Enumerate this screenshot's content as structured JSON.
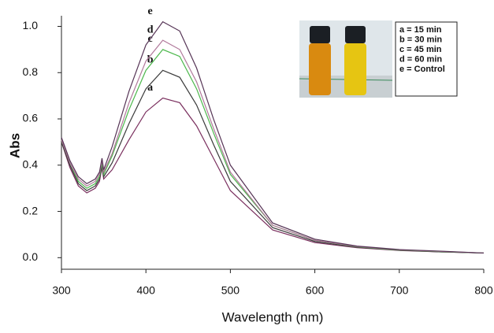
{
  "chart_data": {
    "type": "line",
    "xlabel": "Wavelength (nm)",
    "ylabel": "Abs",
    "x": [
      300,
      310,
      320,
      330,
      340,
      345,
      348,
      350,
      360,
      380,
      400,
      420,
      440,
      460,
      480,
      500,
      550,
      600,
      650,
      700,
      750,
      800
    ],
    "series": [
      {
        "name": "a = 15 min",
        "label": "a",
        "color": "#7a2f5e",
        "values": [
          0.5,
          0.39,
          0.31,
          0.28,
          0.3,
          0.33,
          0.39,
          0.34,
          0.38,
          0.51,
          0.63,
          0.69,
          0.67,
          0.57,
          0.43,
          0.29,
          0.12,
          0.065,
          0.043,
          0.031,
          0.025,
          0.02
        ]
      },
      {
        "name": "b = 30 min",
        "label": "b",
        "color": "#3a3a3a",
        "values": [
          0.5,
          0.4,
          0.32,
          0.29,
          0.31,
          0.34,
          0.4,
          0.35,
          0.41,
          0.58,
          0.73,
          0.81,
          0.78,
          0.66,
          0.49,
          0.33,
          0.13,
          0.07,
          0.045,
          0.032,
          0.025,
          0.02
        ]
      },
      {
        "name": "c = 45 min",
        "label": "c",
        "color": "#4cb84c",
        "values": [
          0.51,
          0.41,
          0.33,
          0.3,
          0.32,
          0.35,
          0.41,
          0.36,
          0.44,
          0.64,
          0.81,
          0.9,
          0.87,
          0.73,
          0.54,
          0.36,
          0.14,
          0.075,
          0.047,
          0.033,
          0.026,
          0.02
        ]
      },
      {
        "name": "d = 60 min",
        "label": "d",
        "color": "#b0789a",
        "values": [
          0.51,
          0.41,
          0.34,
          0.31,
          0.33,
          0.36,
          0.42,
          0.37,
          0.45,
          0.67,
          0.85,
          0.94,
          0.9,
          0.76,
          0.56,
          0.37,
          0.14,
          0.075,
          0.048,
          0.034,
          0.027,
          0.02
        ]
      },
      {
        "name": "e = Control",
        "label": "e",
        "color": "#553355",
        "values": [
          0.52,
          0.42,
          0.35,
          0.32,
          0.34,
          0.37,
          0.43,
          0.38,
          0.48,
          0.72,
          0.92,
          1.02,
          0.98,
          0.82,
          0.6,
          0.4,
          0.15,
          0.08,
          0.05,
          0.035,
          0.028,
          0.02
        ]
      }
    ],
    "xlim": [
      300,
      800
    ],
    "xticks": [
      300,
      400,
      500,
      600,
      700,
      800
    ],
    "ylim": [
      -0.05,
      1.08
    ],
    "yticks": [
      {
        "value": 0,
        "label": "0.0"
      },
      0.2,
      0.4,
      0.6,
      0.8,
      {
        "value": 1,
        "label": "1.0"
      }
    ]
  }
}
